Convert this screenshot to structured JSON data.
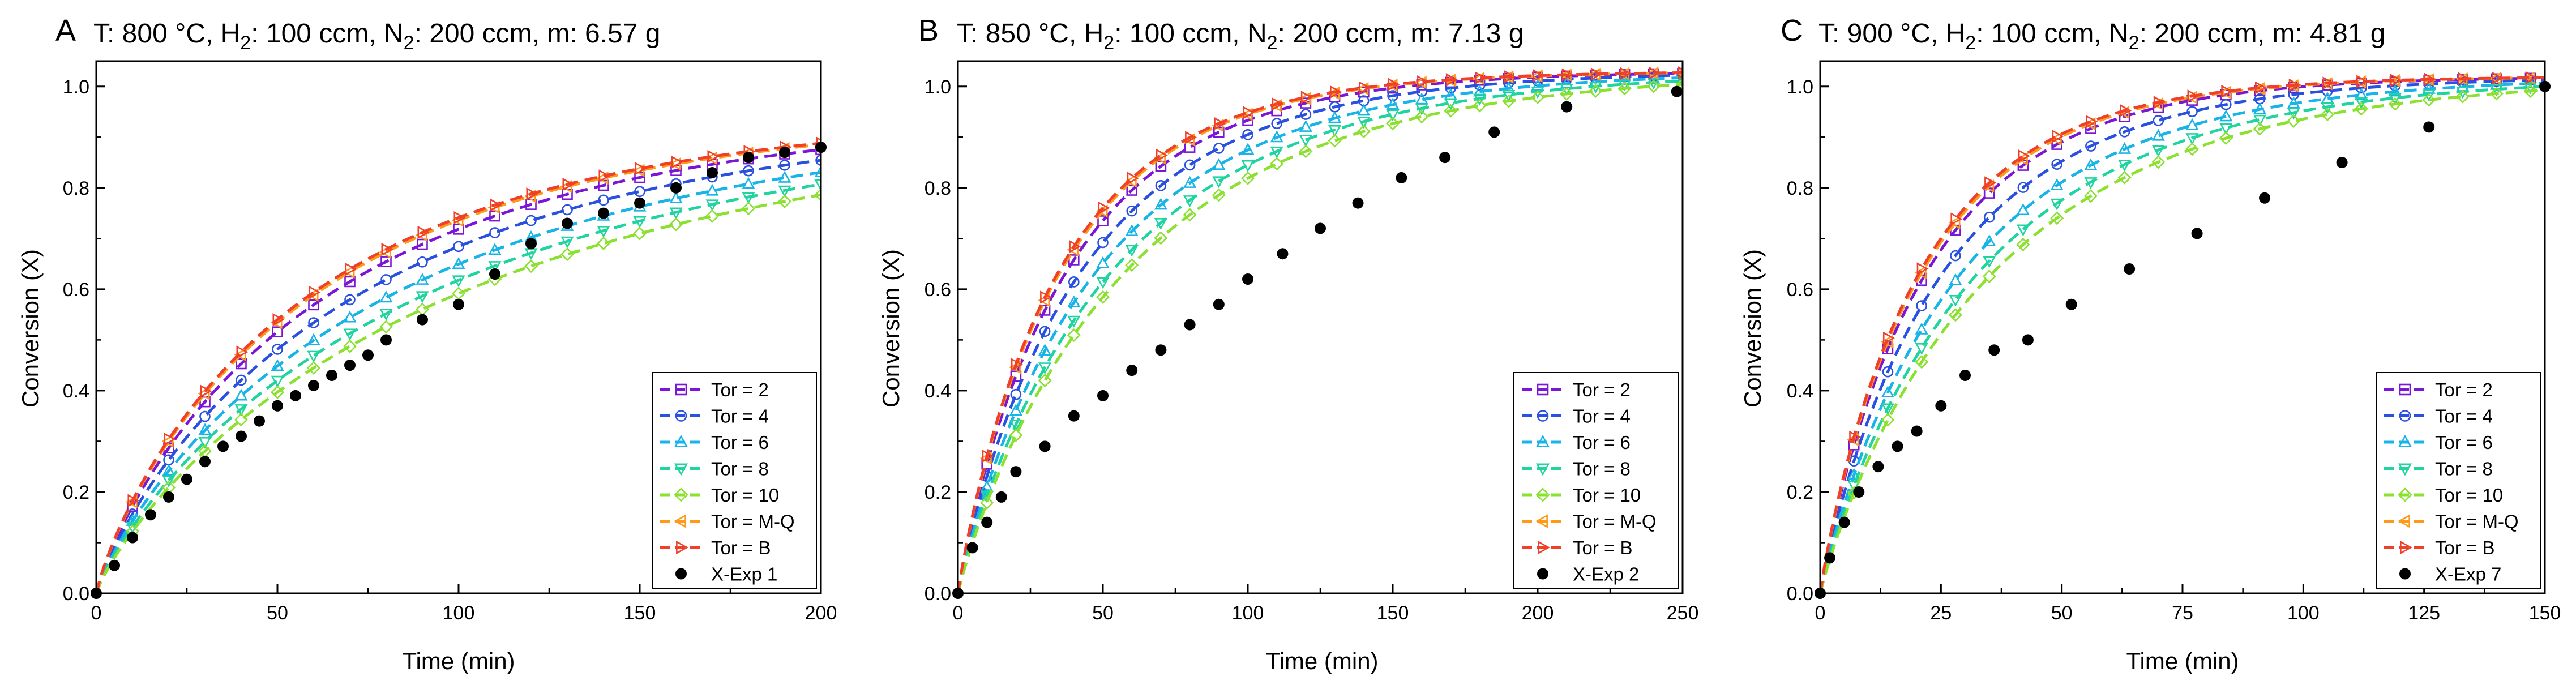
{
  "chart_data": [
    {
      "type": "line",
      "panel_label": "A",
      "title": "T: 800 °C, H2: 100 ccm, N2: 200 ccm, m: 6.57 g",
      "title_parts": {
        "t": "T: 800 °C, H",
        "h2sub": "2",
        "mid": ": 100 ccm, N",
        "n2sub": "2",
        "end": ": 200 ccm, m: 6.57 g"
      },
      "xlabel": "Time (min)",
      "ylabel": "Conversion (X)",
      "xlim": [
        0,
        200
      ],
      "ylim": [
        0,
        1.05
      ],
      "xticks": [
        0,
        50,
        100,
        150,
        200
      ],
      "yticks": [
        0.0,
        0.2,
        0.4,
        0.6,
        0.8,
        1.0
      ],
      "ytick_labels": [
        "0.0",
        "0.2",
        "0.4",
        "0.6",
        "0.8",
        "1.0"
      ],
      "legend_position": "bottom-right",
      "model_series": [
        {
          "name": "Tor = 2",
          "k": 0.015,
          "p": 0.85,
          "c": 0.95
        },
        {
          "name": "Tor = 4",
          "k": 0.0133,
          "p": 0.85,
          "c": 0.95
        },
        {
          "name": "Tor = 6",
          "k": 0.0118,
          "p": 0.85,
          "c": 0.95
        },
        {
          "name": "Tor = 8",
          "k": 0.0106,
          "p": 0.85,
          "c": 0.95
        },
        {
          "name": "Tor = 10",
          "k": 0.0097,
          "p": 0.85,
          "c": 0.95
        },
        {
          "name": "Tor = M-Q",
          "k": 0.016,
          "p": 0.85,
          "c": 0.95
        },
        {
          "name": "Tor = B",
          "k": 0.0163,
          "p": 0.85,
          "c": 0.95
        }
      ],
      "marker_step": 10,
      "experiment": {
        "name": "X-Exp 1",
        "x": [
          0,
          5,
          10,
          15,
          20,
          25,
          30,
          35,
          40,
          45,
          50,
          55,
          60,
          65,
          70,
          75,
          80,
          90,
          100,
          110,
          120,
          130,
          140,
          150,
          160,
          170,
          180,
          190,
          200
        ],
        "y": [
          0.0,
          0.055,
          0.11,
          0.155,
          0.19,
          0.225,
          0.26,
          0.29,
          0.31,
          0.34,
          0.37,
          0.39,
          0.41,
          0.43,
          0.45,
          0.47,
          0.5,
          0.54,
          0.57,
          0.63,
          0.69,
          0.73,
          0.75,
          0.77,
          0.8,
          0.83,
          0.86,
          0.87,
          0.88
        ]
      }
    },
    {
      "type": "line",
      "panel_label": "B",
      "title": "T: 850 °C, H2: 100 ccm, N2: 200 ccm, m: 7.13 g",
      "title_parts": {
        "t": "T: 850 °C, H",
        "h2sub": "2",
        "mid": ": 100 ccm, N",
        "n2sub": "2",
        "end": ": 200 ccm, m: 7.13 g"
      },
      "xlabel": "Time (min)",
      "ylabel": "Conversion (X)",
      "xlim": [
        0,
        250
      ],
      "ylim": [
        0,
        1.05
      ],
      "xticks": [
        0,
        50,
        100,
        150,
        200,
        250
      ],
      "yticks": [
        0.0,
        0.2,
        0.4,
        0.6,
        0.8,
        1.0
      ],
      "ytick_labels": [
        "0.0",
        "0.2",
        "0.4",
        "0.6",
        "0.8",
        "1.0"
      ],
      "legend_position": "bottom-right",
      "model_series": [
        {
          "name": "Tor = 2",
          "k": 0.0255,
          "p": 0.92,
          "c": 1.03
        },
        {
          "name": "Tor = 4",
          "k": 0.0225,
          "p": 0.92,
          "c": 1.03
        },
        {
          "name": "Tor = 6",
          "k": 0.02,
          "p": 0.92,
          "c": 1.03
        },
        {
          "name": "Tor = 8",
          "k": 0.018,
          "p": 0.92,
          "c": 1.03
        },
        {
          "name": "Tor = 10",
          "k": 0.0165,
          "p": 0.92,
          "c": 1.03
        },
        {
          "name": "Tor = M-Q",
          "k": 0.027,
          "p": 0.92,
          "c": 1.03
        },
        {
          "name": "Tor = B",
          "k": 0.0275,
          "p": 0.92,
          "c": 1.03
        }
      ],
      "marker_step": 10,
      "experiment": {
        "name": "X-Exp 2",
        "x": [
          0,
          5,
          10,
          15,
          20,
          30,
          40,
          50,
          60,
          70,
          80,
          90,
          100,
          112,
          125,
          138,
          153,
          168,
          185,
          210,
          248
        ],
        "y": [
          0.0,
          0.09,
          0.14,
          0.19,
          0.24,
          0.29,
          0.35,
          0.39,
          0.44,
          0.48,
          0.53,
          0.57,
          0.62,
          0.67,
          0.72,
          0.77,
          0.82,
          0.86,
          0.91,
          0.96,
          0.99
        ]
      }
    },
    {
      "type": "line",
      "panel_label": "C",
      "title": "T: 900 °C, H2: 100 ccm, N2: 200 ccm, m: 4.81 g",
      "title_parts": {
        "t": "T: 900 °C, H",
        "h2sub": "2",
        "mid": ": 100 ccm, N",
        "n2sub": "2",
        "end": ": 200 ccm, m: 4.81 g"
      },
      "xlabel": "Time (min)",
      "ylabel": "Conversion (X)",
      "xlim": [
        0,
        150
      ],
      "ylim": [
        0,
        1.05
      ],
      "xticks": [
        0,
        25,
        50,
        75,
        100,
        125,
        150
      ],
      "yticks": [
        0.0,
        0.2,
        0.4,
        0.6,
        0.8,
        1.0
      ],
      "ytick_labels": [
        "0.0",
        "0.2",
        "0.4",
        "0.6",
        "0.8",
        "1.0"
      ],
      "legend_position": "bottom-right",
      "model_series": [
        {
          "name": "Tor = 2",
          "k": 0.044,
          "p": 0.92,
          "c": 1.02
        },
        {
          "name": "Tor = 4",
          "k": 0.038,
          "p": 0.92,
          "c": 1.02
        },
        {
          "name": "Tor = 6",
          "k": 0.033,
          "p": 0.92,
          "c": 1.02
        },
        {
          "name": "Tor = 8",
          "k": 0.0295,
          "p": 0.92,
          "c": 1.02
        },
        {
          "name": "Tor = 10",
          "k": 0.027,
          "p": 0.92,
          "c": 1.02
        },
        {
          "name": "Tor = M-Q",
          "k": 0.046,
          "p": 0.92,
          "c": 1.02
        },
        {
          "name": "Tor = B",
          "k": 0.047,
          "p": 0.92,
          "c": 1.02
        }
      ],
      "marker_step": 7,
      "experiment": {
        "name": "X-Exp 7",
        "x": [
          0,
          2,
          5,
          8,
          12,
          16,
          20,
          25,
          30,
          36,
          43,
          52,
          64,
          78,
          92,
          108,
          126,
          150
        ],
        "y": [
          0.0,
          0.07,
          0.14,
          0.2,
          0.25,
          0.29,
          0.32,
          0.37,
          0.43,
          0.48,
          0.5,
          0.57,
          0.64,
          0.71,
          0.78,
          0.85,
          0.92,
          1.0
        ]
      }
    }
  ],
  "series_styles": [
    {
      "color": "#7B16D6",
      "marker": "square"
    },
    {
      "color": "#2A50E0",
      "marker": "circle"
    },
    {
      "color": "#18B4E8",
      "marker": "triangle-up"
    },
    {
      "color": "#20D4A0",
      "marker": "triangle-down"
    },
    {
      "color": "#8CE030",
      "marker": "diamond"
    },
    {
      "color": "#FF9A18",
      "marker": "triangle-left"
    },
    {
      "color": "#F0402A",
      "marker": "triangle-right"
    }
  ],
  "experiment_color": "#000000"
}
